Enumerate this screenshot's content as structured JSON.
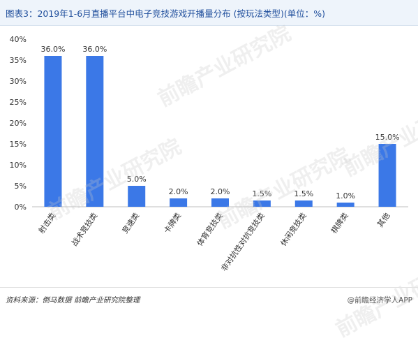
{
  "header": {
    "title": "图表3：2019年1-6月直播平台中电子竞技游戏开播量分布 (按玩法类型)(单位：%)"
  },
  "footer": {
    "source": "资料来源：倒马数据 前瞻产业研究院整理",
    "brand": "@前瞻经济学人APP"
  },
  "watermark": {
    "text": "前瞻产业研究院"
  },
  "chart_data": {
    "type": "bar",
    "categories": [
      "射击类",
      "战术竞技类",
      "竞速类",
      "卡牌类",
      "体育竞技类",
      "非对抗性对抗竞技类",
      "休闲竞技类",
      "棋牌类",
      "其他"
    ],
    "values": [
      36.0,
      36.0,
      5.0,
      2.0,
      2.0,
      1.5,
      1.5,
      1.0,
      15.0
    ],
    "data_labels": [
      "36.0%",
      "36.0%",
      "5.0%",
      "2.0%",
      "2.0%",
      "1.5%",
      "1.5%",
      "1.0%",
      "15.0%"
    ],
    "ylim": [
      0,
      40
    ],
    "yticks": [
      0,
      5,
      10,
      15,
      20,
      25,
      30,
      35,
      40
    ],
    "ytick_labels": [
      "0%",
      "5%",
      "10%",
      "15%",
      "20%",
      "25%",
      "30%",
      "35%",
      "40%"
    ],
    "grid": false,
    "legend": "none",
    "bar_color": "#3b78e7"
  }
}
